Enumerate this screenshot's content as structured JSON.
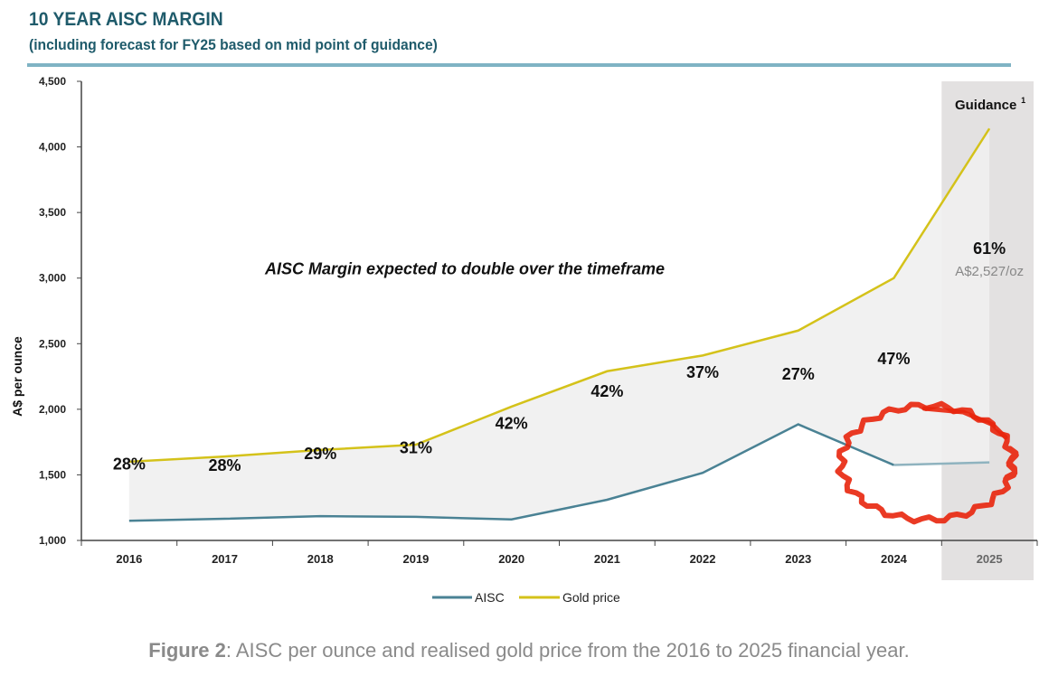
{
  "title": "10 YEAR AISC MARGIN",
  "subtitle": "(including forecast for FY25 based on mid point of guidance)",
  "caption": {
    "bold": "Figure 2",
    "text": ": AISC per ounce and realised gold price from the 2016 to 2025 financial year."
  },
  "colors": {
    "aisc": "#4a8294",
    "gold": "#d4c21a",
    "band": "#efefef",
    "guidance_shade": "#e3e1e1",
    "annotation_red": "#e8250c"
  },
  "chart_data": {
    "type": "line",
    "categories": [
      "2016",
      "2017",
      "2018",
      "2019",
      "2020",
      "2021",
      "2022",
      "2023",
      "2024",
      "2025"
    ],
    "series": [
      {
        "name": "AISC",
        "values": [
          1150,
          1165,
          1185,
          1180,
          1160,
          1310,
          1515,
          1885,
          1575,
          1595
        ]
      },
      {
        "name": "Gold price",
        "values": [
          1600,
          1640,
          1690,
          1730,
          2020,
          2290,
          2410,
          2600,
          3000,
          4140
        ]
      }
    ],
    "margin_labels": [
      "28%",
      "28%",
      "29%",
      "31%",
      "42%",
      "42%",
      "37%",
      "27%",
      "47%",
      "61%"
    ],
    "margin_label_values": [
      1540,
      1530,
      1620,
      1665,
      1850,
      2095,
      2240,
      2225,
      2345,
      3185
    ],
    "ylabel": "A$ per ounce",
    "ylim": [
      1000,
      4500
    ],
    "yticks": [
      1000,
      1500,
      2000,
      2500,
      3000,
      3500,
      4000,
      4500
    ],
    "ytick_labels": [
      "1,000",
      "1,500",
      "2,000",
      "2,500",
      "3,000",
      "3,500",
      "4,000",
      "4,500"
    ],
    "guidance_label": "Guidance",
    "guidance_superscript": "1",
    "guidance_price_label": "A$2,527/oz",
    "guidance_price_label_value": 3020,
    "annotation": "AISC Margin expected to double over the timeframe",
    "annotation_value": 3030,
    "legend": [
      "AISC",
      "Gold price"
    ],
    "legend_position": "bottom",
    "grid": false
  }
}
